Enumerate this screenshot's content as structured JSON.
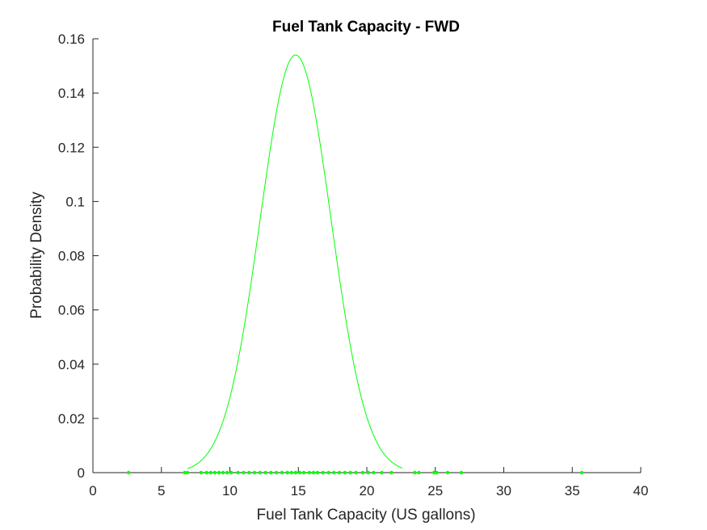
{
  "chart_data": {
    "type": "line",
    "title": "Fuel Tank Capacity - FWD",
    "xlabel": "Fuel Tank Capacity (US gallons)",
    "ylabel": "Probability Density",
    "xlim": [
      0,
      40
    ],
    "ylim": [
      0,
      0.16
    ],
    "xticks": [
      0,
      5,
      10,
      15,
      20,
      25,
      30,
      35,
      40
    ],
    "yticks": [
      0,
      0.02,
      0.04,
      0.06,
      0.08,
      0.1,
      0.12,
      0.14,
      0.16
    ],
    "xtick_labels": [
      "0",
      "5",
      "10",
      "15",
      "20",
      "25",
      "30",
      "35",
      "40"
    ],
    "ytick_labels": [
      "0",
      "0.02",
      "0.04",
      "0.06",
      "0.08",
      "0.1",
      "0.12",
      "0.14",
      "0.16"
    ],
    "grid": false,
    "series_color": "#00ff00",
    "series": [
      {
        "kind": "pdf-curve",
        "distribution": "normal",
        "mean": 14.8,
        "sd": 2.59,
        "x_range": [
          6.9,
          22.6
        ]
      },
      {
        "kind": "data-points",
        "y": 0,
        "x": [
          2.6,
          6.7,
          6.9,
          7.9,
          8.3,
          8.6,
          8.9,
          9.2,
          9.5,
          9.8,
          10.1,
          10.6,
          11.0,
          11.4,
          11.8,
          12.2,
          12.6,
          13.0,
          13.4,
          13.8,
          14.2,
          14.5,
          14.8,
          15.1,
          15.4,
          15.8,
          16.1,
          16.4,
          16.8,
          17.2,
          17.6,
          18.0,
          18.4,
          18.8,
          19.2,
          19.7,
          20.1,
          20.5,
          21.1,
          21.8,
          23.5,
          23.8,
          24.9,
          25.1,
          25.9,
          26.9,
          35.7
        ]
      }
    ]
  }
}
